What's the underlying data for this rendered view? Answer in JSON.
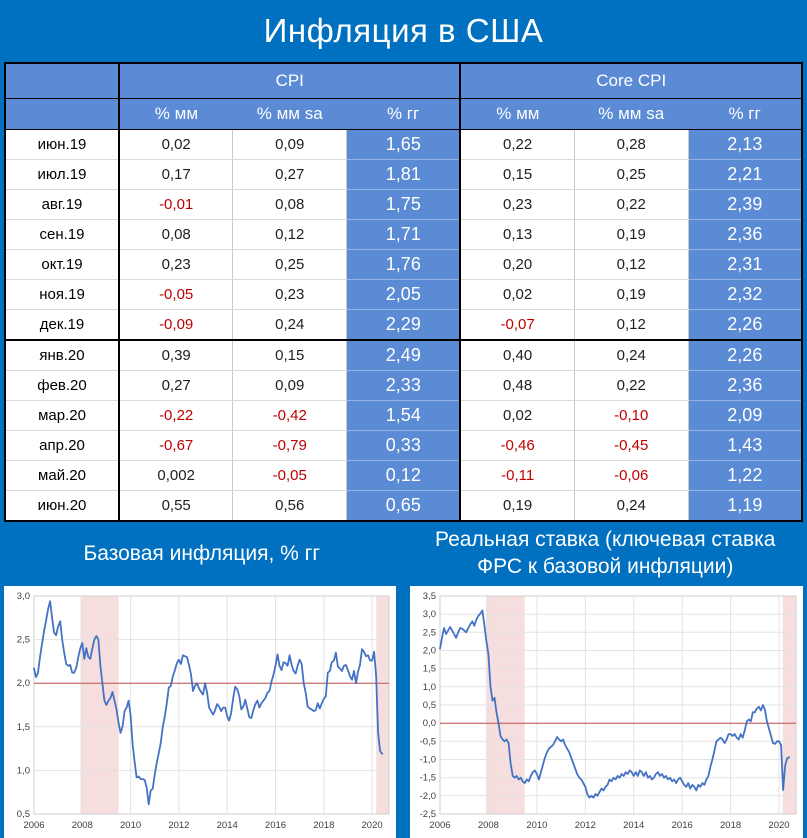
{
  "page": {
    "title": "Инфляция в США",
    "background": "#0070C0",
    "accent_blue": "#5B8BD5",
    "negative_color": "#C00000"
  },
  "table": {
    "header_groups": [
      {
        "label": ""
      },
      {
        "label": "CPI"
      },
      {
        "label": "Core CPI"
      }
    ],
    "sub_headers": [
      "",
      "% мм",
      "% мм sa",
      "% гг",
      "% мм",
      "% мм sa",
      "% гг"
    ],
    "rows": [
      [
        "июн.19",
        "0,02",
        "0,09",
        "1,65",
        "0,22",
        "0,28",
        "2,13"
      ],
      [
        "июл.19",
        "0,17",
        "0,27",
        "1,81",
        "0,15",
        "0,25",
        "2,21"
      ],
      [
        "авг.19",
        "-0,01",
        "0,08",
        "1,75",
        "0,23",
        "0,22",
        "2,39"
      ],
      [
        "сен.19",
        "0,08",
        "0,12",
        "1,71",
        "0,13",
        "0,19",
        "2,36"
      ],
      [
        "окт.19",
        "0,23",
        "0,25",
        "1,76",
        "0,20",
        "0,12",
        "2,31"
      ],
      [
        "ноя.19",
        "-0,05",
        "0,23",
        "2,05",
        "0,02",
        "0,19",
        "2,32"
      ],
      [
        "дек.19",
        "-0,09",
        "0,24",
        "2,29",
        "-0,07",
        "0,12",
        "2,26"
      ],
      [
        "янв.20",
        "0,39",
        "0,15",
        "2,49",
        "0,40",
        "0,24",
        "2,26"
      ],
      [
        "фев.20",
        "0,27",
        "0,09",
        "2,33",
        "0,48",
        "0,22",
        "2,36"
      ],
      [
        "мар.20",
        "-0,22",
        "-0,42",
        "1,54",
        "0,02",
        "-0,10",
        "2,09"
      ],
      [
        "апр.20",
        "-0,67",
        "-0,79",
        "0,33",
        "-0,46",
        "-0,45",
        "1,43"
      ],
      [
        "май.20",
        "0,002",
        "-0,05",
        "0,12",
        "-0,11",
        "-0,06",
        "1,22"
      ],
      [
        "июн.20",
        "0,55",
        "0,56",
        "0,65",
        "0,19",
        "0,24",
        "1,19"
      ]
    ],
    "year_break_row_index": 6
  },
  "section_titles": {
    "left": "Базовая инфляция, % гг",
    "right_lines": [
      "Реальная ставка (ключевая ставка",
      "ФРС к базовой инфляции)"
    ]
  },
  "chart_data": [
    {
      "type": "line",
      "title": "Базовая инфляция, % гг",
      "x_start": 2006,
      "x_step_months": 1,
      "x_min": 2006,
      "x_max": 2020.7,
      "y_min": 0.5,
      "y_max": 3.0,
      "y_step": 0.5,
      "x_ticks": [
        2006,
        2008,
        2010,
        2012,
        2014,
        2016,
        2018,
        2020
      ],
      "ref_line": 2.0,
      "bands": [
        [
          2007.92,
          2009.5
        ],
        [
          2020.17,
          2020.7
        ]
      ],
      "line_color": "#4472C4",
      "ref_color": "#C0504D",
      "band_color": "#F5DEDD",
      "grid_color": "#e3e3e3",
      "values": [
        2.17,
        2.07,
        2.12,
        2.3,
        2.45,
        2.6,
        2.72,
        2.85,
        2.94,
        2.75,
        2.58,
        2.55,
        2.65,
        2.71,
        2.5,
        2.35,
        2.22,
        2.2,
        2.21,
        2.12,
        2.12,
        2.18,
        2.3,
        2.4,
        2.46,
        2.28,
        2.4,
        2.3,
        2.28,
        2.4,
        2.5,
        2.54,
        2.5,
        2.2,
        2.0,
        1.8,
        1.75,
        1.8,
        1.83,
        1.9,
        1.8,
        1.7,
        1.55,
        1.43,
        1.5,
        1.68,
        1.72,
        1.8,
        1.63,
        1.3,
        1.1,
        0.92,
        0.93,
        0.9,
        0.9,
        0.89,
        0.8,
        0.61,
        0.77,
        0.79,
        0.95,
        1.09,
        1.2,
        1.32,
        1.5,
        1.62,
        1.77,
        1.95,
        1.97,
        2.08,
        2.15,
        2.23,
        2.27,
        2.22,
        2.32,
        2.31,
        2.3,
        2.21,
        2.1,
        1.91,
        1.97,
        2.0,
        1.94,
        1.9,
        1.87,
        2.0,
        1.89,
        1.72,
        1.68,
        1.64,
        1.69,
        1.76,
        1.73,
        1.68,
        1.72,
        1.72,
        1.62,
        1.57,
        1.66,
        1.83,
        1.96,
        1.93,
        1.85,
        1.7,
        1.73,
        1.81,
        1.71,
        1.61,
        1.6,
        1.69,
        1.76,
        1.8,
        1.72,
        1.77,
        1.8,
        1.83,
        1.89,
        1.91,
        2.02,
        2.1,
        2.2,
        2.33,
        2.2,
        2.15,
        2.24,
        2.23,
        2.2,
        2.32,
        2.21,
        2.14,
        2.11,
        2.2,
        2.27,
        2.22,
        2.0,
        1.89,
        1.73,
        1.71,
        1.7,
        1.68,
        1.69,
        1.77,
        1.71,
        1.77,
        1.82,
        1.85,
        2.12,
        2.14,
        2.24,
        2.26,
        2.35,
        2.19,
        2.17,
        2.14,
        2.2,
        2.21,
        2.15,
        2.08,
        2.04,
        2.14,
        2.0,
        2.13,
        2.21,
        2.39,
        2.36,
        2.31,
        2.32,
        2.26,
        2.26,
        2.36,
        2.09,
        1.43,
        1.22,
        1.19
      ]
    },
    {
      "type": "line",
      "title": "Реальная ставка (ключевая ставка ФРС к базовой инфляции)",
      "x_start": 2006,
      "x_step_months": 1,
      "x_min": 2006,
      "x_max": 2020.7,
      "y_min": -2.5,
      "y_max": 3.5,
      "y_step": 0.5,
      "x_ticks": [
        2006,
        2008,
        2010,
        2012,
        2014,
        2016,
        2018,
        2020
      ],
      "ref_line": 0.0,
      "bands": [
        [
          2007.9,
          2009.5
        ],
        [
          2020.15,
          2020.7
        ]
      ],
      "line_color": "#4472C4",
      "ref_color": "#C0504D",
      "band_color": "#F5DEDD",
      "grid_color": "#e3e3e3",
      "values": [
        2.05,
        2.35,
        2.62,
        2.45,
        2.55,
        2.65,
        2.55,
        2.45,
        2.35,
        2.5,
        2.62,
        2.6,
        2.55,
        2.5,
        2.62,
        2.72,
        2.8,
        2.68,
        2.85,
        2.95,
        3.02,
        3.1,
        2.7,
        2.25,
        1.9,
        1.0,
        0.62,
        0.7,
        0.3,
        0.0,
        -0.35,
        -0.45,
        -0.5,
        -0.45,
        -0.55,
        -1.1,
        -1.45,
        -1.5,
        -1.45,
        -1.55,
        -1.5,
        -1.6,
        -1.65,
        -1.55,
        -1.6,
        -1.45,
        -1.35,
        -1.3,
        -1.4,
        -1.55,
        -1.35,
        -1.15,
        -0.95,
        -0.8,
        -0.7,
        -0.65,
        -0.6,
        -0.5,
        -0.38,
        -0.45,
        -0.5,
        -0.45,
        -0.6,
        -0.7,
        -0.8,
        -0.95,
        -1.1,
        -1.25,
        -1.4,
        -1.5,
        -1.55,
        -1.65,
        -1.75,
        -1.95,
        -2.05,
        -2.0,
        -2.05,
        -1.95,
        -2.0,
        -1.9,
        -1.8,
        -1.85,
        -1.75,
        -1.7,
        -1.55,
        -1.6,
        -1.5,
        -1.55,
        -1.45,
        -1.5,
        -1.4,
        -1.45,
        -1.35,
        -1.4,
        -1.3,
        -1.35,
        -1.45,
        -1.35,
        -1.45,
        -1.3,
        -1.35,
        -1.45,
        -1.35,
        -1.5,
        -1.45,
        -1.55,
        -1.5,
        -1.4,
        -1.35,
        -1.45,
        -1.4,
        -1.5,
        -1.45,
        -1.55,
        -1.5,
        -1.6,
        -1.55,
        -1.65,
        -1.55,
        -1.5,
        -1.6,
        -1.7,
        -1.75,
        -1.65,
        -1.8,
        -1.7,
        -1.75,
        -1.85,
        -1.7,
        -1.75,
        -1.65,
        -1.7,
        -1.55,
        -1.45,
        -1.2,
        -1.0,
        -0.75,
        -0.5,
        -0.45,
        -0.4,
        -0.45,
        -0.55,
        -0.45,
        -0.3,
        -0.3,
        -0.35,
        -0.3,
        -0.4,
        -0.45,
        -0.3,
        -0.4,
        -0.2,
        0.05,
        0.1,
        0.05,
        0.3,
        0.3,
        0.4,
        0.45,
        0.35,
        0.5,
        0.37,
        0.05,
        -0.15,
        -0.35,
        -0.55,
        -0.57,
        -0.5,
        -0.5,
        -0.6,
        -1.84,
        -1.18,
        -0.97,
        -0.94
      ]
    }
  ]
}
